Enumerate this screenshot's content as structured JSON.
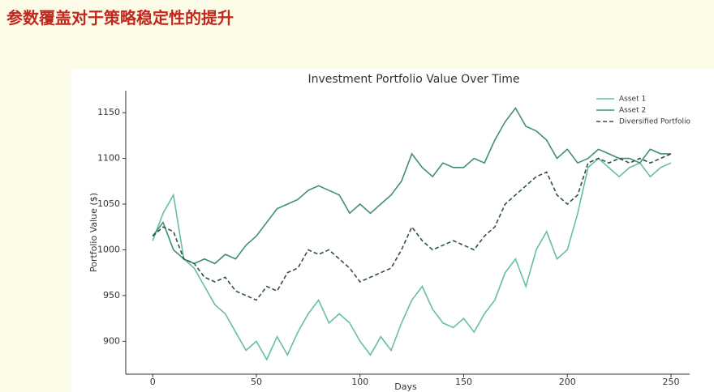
{
  "header": {
    "title": "参数覆盖对于策略稳定性的提升"
  },
  "chart_data": {
    "type": "line",
    "title": "Investment Portfolio Value Over Time",
    "x_label": "Days",
    "y_label": "Portfolio Value ($)",
    "x": [
      0,
      5,
      10,
      15,
      20,
      25,
      30,
      35,
      40,
      45,
      50,
      55,
      60,
      65,
      70,
      75,
      80,
      85,
      90,
      95,
      100,
      105,
      110,
      115,
      120,
      125,
      130,
      135,
      140,
      145,
      150,
      155,
      160,
      165,
      170,
      175,
      180,
      185,
      190,
      195,
      200,
      205,
      210,
      215,
      220,
      225,
      230,
      235,
      240,
      245,
      250
    ],
    "series": [
      {
        "name": "Asset 1",
        "color": "#66bfa2",
        "linestyle": "solid",
        "values": [
          1010,
          1040,
          1060,
          990,
          980,
          960,
          940,
          930,
          910,
          890,
          900,
          880,
          905,
          885,
          910,
          930,
          945,
          920,
          930,
          920,
          900,
          885,
          905,
          890,
          920,
          945,
          960,
          935,
          920,
          915,
          925,
          910,
          930,
          945,
          975,
          990,
          960,
          1000,
          1020,
          990,
          1000,
          1040,
          1090,
          1100,
          1090,
          1080,
          1090,
          1095,
          1080,
          1090,
          1095
        ]
      },
      {
        "name": "Asset 2",
        "color": "#3e8f74",
        "linestyle": "solid",
        "values": [
          1015,
          1030,
          1000,
          990,
          985,
          990,
          985,
          995,
          990,
          1005,
          1015,
          1030,
          1045,
          1050,
          1055,
          1065,
          1070,
          1065,
          1060,
          1040,
          1050,
          1040,
          1050,
          1060,
          1075,
          1105,
          1090,
          1080,
          1095,
          1090,
          1090,
          1100,
          1095,
          1120,
          1140,
          1155,
          1135,
          1130,
          1120,
          1100,
          1110,
          1095,
          1100,
          1110,
          1105,
          1100,
          1100,
          1095,
          1110,
          1105,
          1105
        ]
      },
      {
        "name": "Diversified Portfolio",
        "color": "#2f4f4f",
        "linestyle": "dashed",
        "values": [
          1015,
          1025,
          1020,
          990,
          985,
          970,
          965,
          970,
          955,
          950,
          945,
          960,
          955,
          975,
          980,
          1000,
          995,
          1000,
          990,
          980,
          965,
          970,
          975,
          980,
          1000,
          1025,
          1010,
          1000,
          1005,
          1010,
          1005,
          1000,
          1015,
          1025,
          1050,
          1060,
          1070,
          1080,
          1085,
          1060,
          1050,
          1060,
          1095,
          1100,
          1095,
          1100,
          1095,
          1100,
          1095,
          1100,
          1105
        ]
      }
    ],
    "xlim": [
      -13,
      259
    ],
    "ylim": [
      864,
      1174
    ],
    "xticks": [
      0,
      50,
      100,
      150,
      200,
      250
    ],
    "yticks": [
      900,
      950,
      1000,
      1050,
      1100,
      1150
    ],
    "grid": false,
    "legend": "upper right"
  }
}
